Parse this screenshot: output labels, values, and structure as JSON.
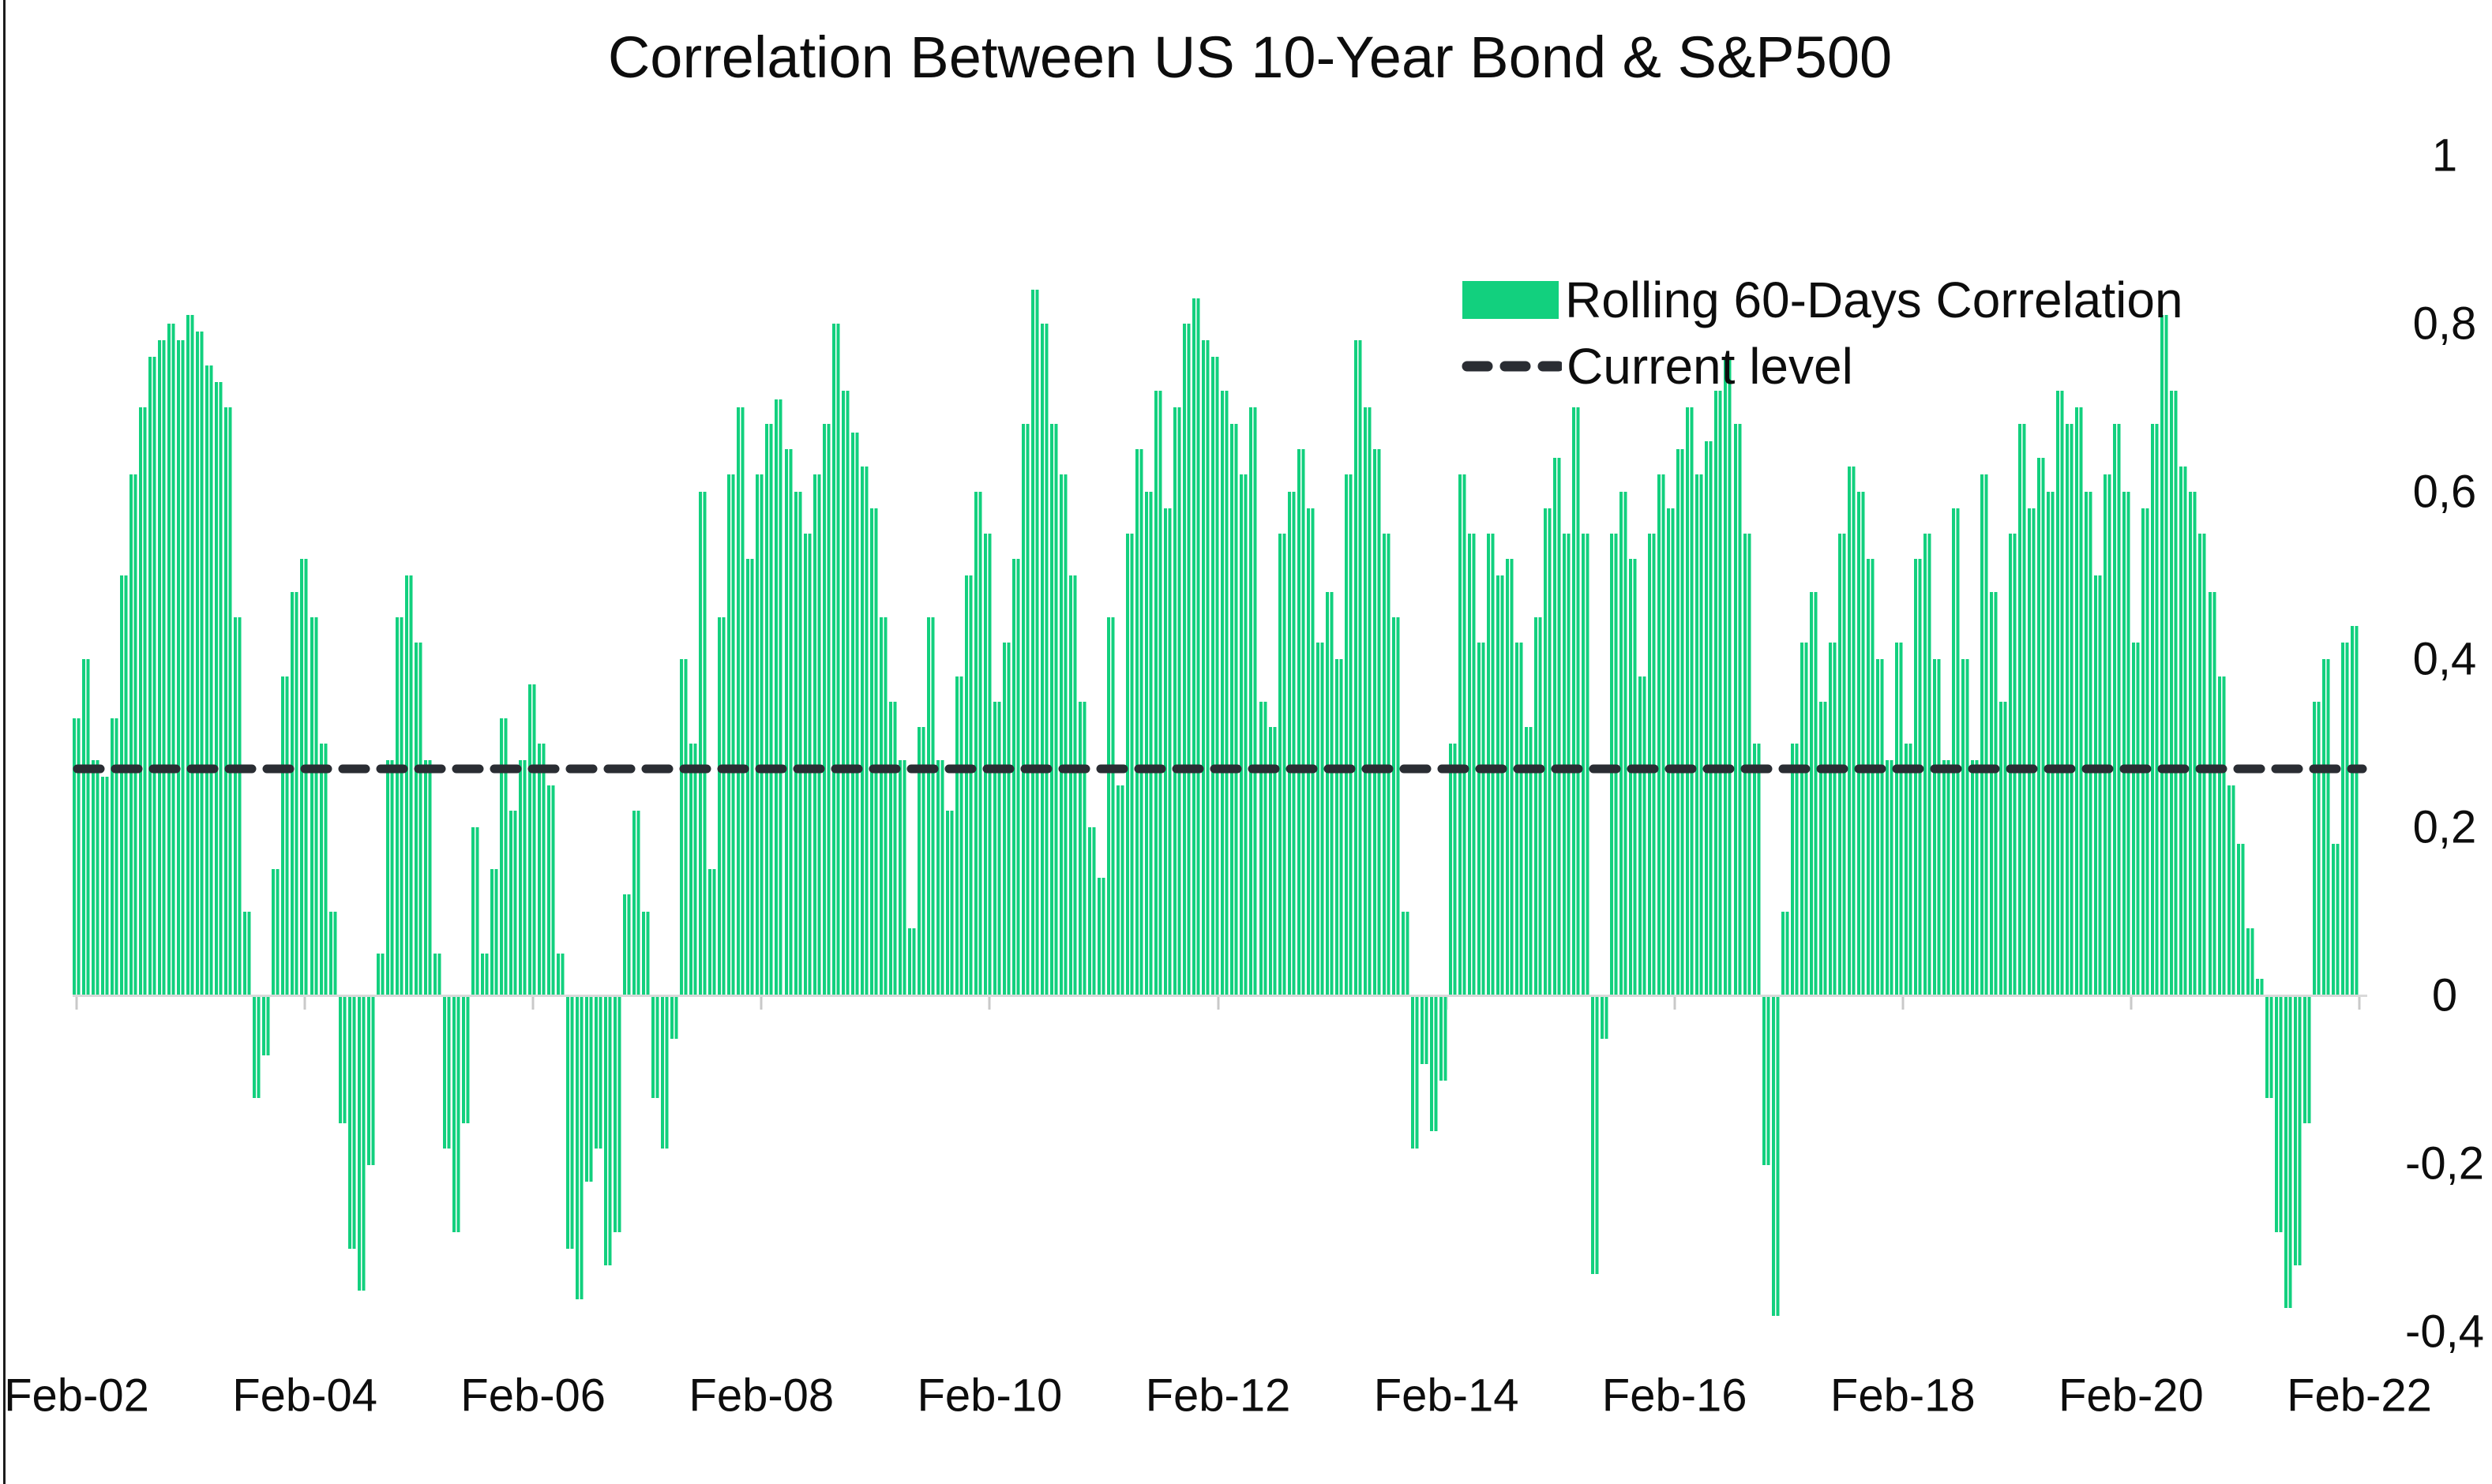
{
  "title": "Correlation Between US 10-Year Bond & S&P500",
  "legend": {
    "series_label": "Rolling 60-Days Correlation",
    "current_level_label": "Current level"
  },
  "colors": {
    "bar_green": "#12d07e",
    "dash_dark": "#2a2d33",
    "axis_black": "#1c1c1c",
    "baseline_gray": "#d9d9d9",
    "tick_mark_gray": "#c9c9c9",
    "text_black": "#0d0d0d"
  },
  "current_level": 0.27,
  "y_axis": {
    "tick_labels": [
      "1",
      "0,8",
      "0,6",
      "0,4",
      "0,2",
      "0",
      "-0,2",
      "-0,4"
    ],
    "tick_values": [
      1,
      0.8,
      0.6,
      0.4,
      0.2,
      0,
      -0.2,
      -0.4
    ],
    "decimal_separator": "comma"
  },
  "x_axis": {
    "tick_labels": [
      "Feb-02",
      "Feb-04",
      "Feb-06",
      "Feb-08",
      "Feb-10",
      "Feb-12",
      "Feb-14",
      "Feb-16",
      "Feb-18",
      "Feb-20",
      "Feb-22"
    ]
  },
  "chart_data": {
    "type": "bar",
    "title": "Correlation Between US 10-Year Bond & S&P500",
    "series_name": "Rolling 60-Days Correlation",
    "x_start": "Feb-2002",
    "x_end": "Feb-2022",
    "x_interval": "monthly sample of daily rolling-correlation bars",
    "xlabel": "",
    "ylabel": "",
    "ylim": [
      -0.4,
      1
    ],
    "grid": false,
    "legend_position": "upper-right-inside",
    "current_level": 0.27,
    "x_tick_labels": [
      "Feb-02",
      "Feb-04",
      "Feb-06",
      "Feb-08",
      "Feb-10",
      "Feb-12",
      "Feb-14",
      "Feb-16",
      "Feb-18",
      "Feb-20",
      "Feb-22"
    ],
    "y_tick_labels": [
      "1",
      "0,8",
      "0,6",
      "0,4",
      "0,2",
      "0",
      "-0,2",
      "-0,4"
    ],
    "values": [
      0.33,
      0.4,
      0.28,
      0.26,
      0.33,
      0.5,
      0.62,
      0.7,
      0.76,
      0.78,
      0.8,
      0.78,
      0.81,
      0.79,
      0.75,
      0.73,
      0.7,
      0.45,
      0.1,
      -0.12,
      -0.07,
      0.15,
      0.38,
      0.48,
      0.52,
      0.45,
      0.3,
      0.1,
      -0.15,
      -0.3,
      -0.35,
      -0.2,
      0.05,
      0.28,
      0.45,
      0.5,
      0.42,
      0.28,
      0.05,
      -0.18,
      -0.28,
      -0.15,
      0.2,
      0.05,
      0.15,
      0.33,
      0.22,
      0.28,
      0.37,
      0.3,
      0.25,
      0.05,
      -0.3,
      -0.36,
      -0.22,
      -0.18,
      -0.32,
      -0.28,
      0.12,
      0.22,
      0.1,
      -0.12,
      -0.18,
      -0.05,
      0.4,
      0.3,
      0.6,
      0.15,
      0.45,
      0.62,
      0.7,
      0.52,
      0.62,
      0.68,
      0.71,
      0.65,
      0.6,
      0.55,
      0.62,
      0.68,
      0.8,
      0.72,
      0.67,
      0.63,
      0.58,
      0.45,
      0.35,
      0.28,
      0.08,
      0.32,
      0.45,
      0.28,
      0.22,
      0.38,
      0.5,
      0.6,
      0.55,
      0.35,
      0.42,
      0.52,
      0.68,
      0.84,
      0.8,
      0.68,
      0.62,
      0.5,
      0.35,
      0.2,
      0.14,
      0.45,
      0.25,
      0.55,
      0.65,
      0.6,
      0.72,
      0.58,
      0.7,
      0.8,
      0.83,
      0.78,
      0.76,
      0.72,
      0.68,
      0.62,
      0.7,
      0.35,
      0.32,
      0.55,
      0.6,
      0.65,
      0.58,
      0.42,
      0.48,
      0.4,
      0.62,
      0.78,
      0.7,
      0.65,
      0.55,
      0.45,
      0.1,
      -0.18,
      -0.08,
      -0.16,
      -0.1,
      0.3,
      0.62,
      0.55,
      0.42,
      0.55,
      0.5,
      0.52,
      0.42,
      0.32,
      0.45,
      0.58,
      0.64,
      0.55,
      0.7,
      0.55,
      -0.33,
      -0.05,
      0.55,
      0.6,
      0.52,
      0.38,
      0.55,
      0.62,
      0.58,
      0.65,
      0.7,
      0.62,
      0.66,
      0.72,
      0.76,
      0.68,
      0.55,
      0.3,
      -0.2,
      -0.38,
      0.1,
      0.3,
      0.42,
      0.48,
      0.35,
      0.42,
      0.55,
      0.63,
      0.6,
      0.52,
      0.4,
      0.28,
      0.42,
      0.3,
      0.52,
      0.55,
      0.4,
      0.28,
      0.58,
      0.4,
      0.28,
      0.62,
      0.48,
      0.35,
      0.55,
      0.68,
      0.58,
      0.64,
      0.6,
      0.72,
      0.68,
      0.7,
      0.6,
      0.5,
      0.62,
      0.68,
      0.6,
      0.42,
      0.58,
      0.68,
      0.81,
      0.72,
      0.63,
      0.6,
      0.55,
      0.48,
      0.38,
      0.25,
      0.18,
      0.08,
      0.02,
      -0.12,
      -0.28,
      -0.37,
      -0.32,
      -0.15,
      0.35,
      0.4,
      0.18,
      0.42,
      0.44
    ]
  }
}
